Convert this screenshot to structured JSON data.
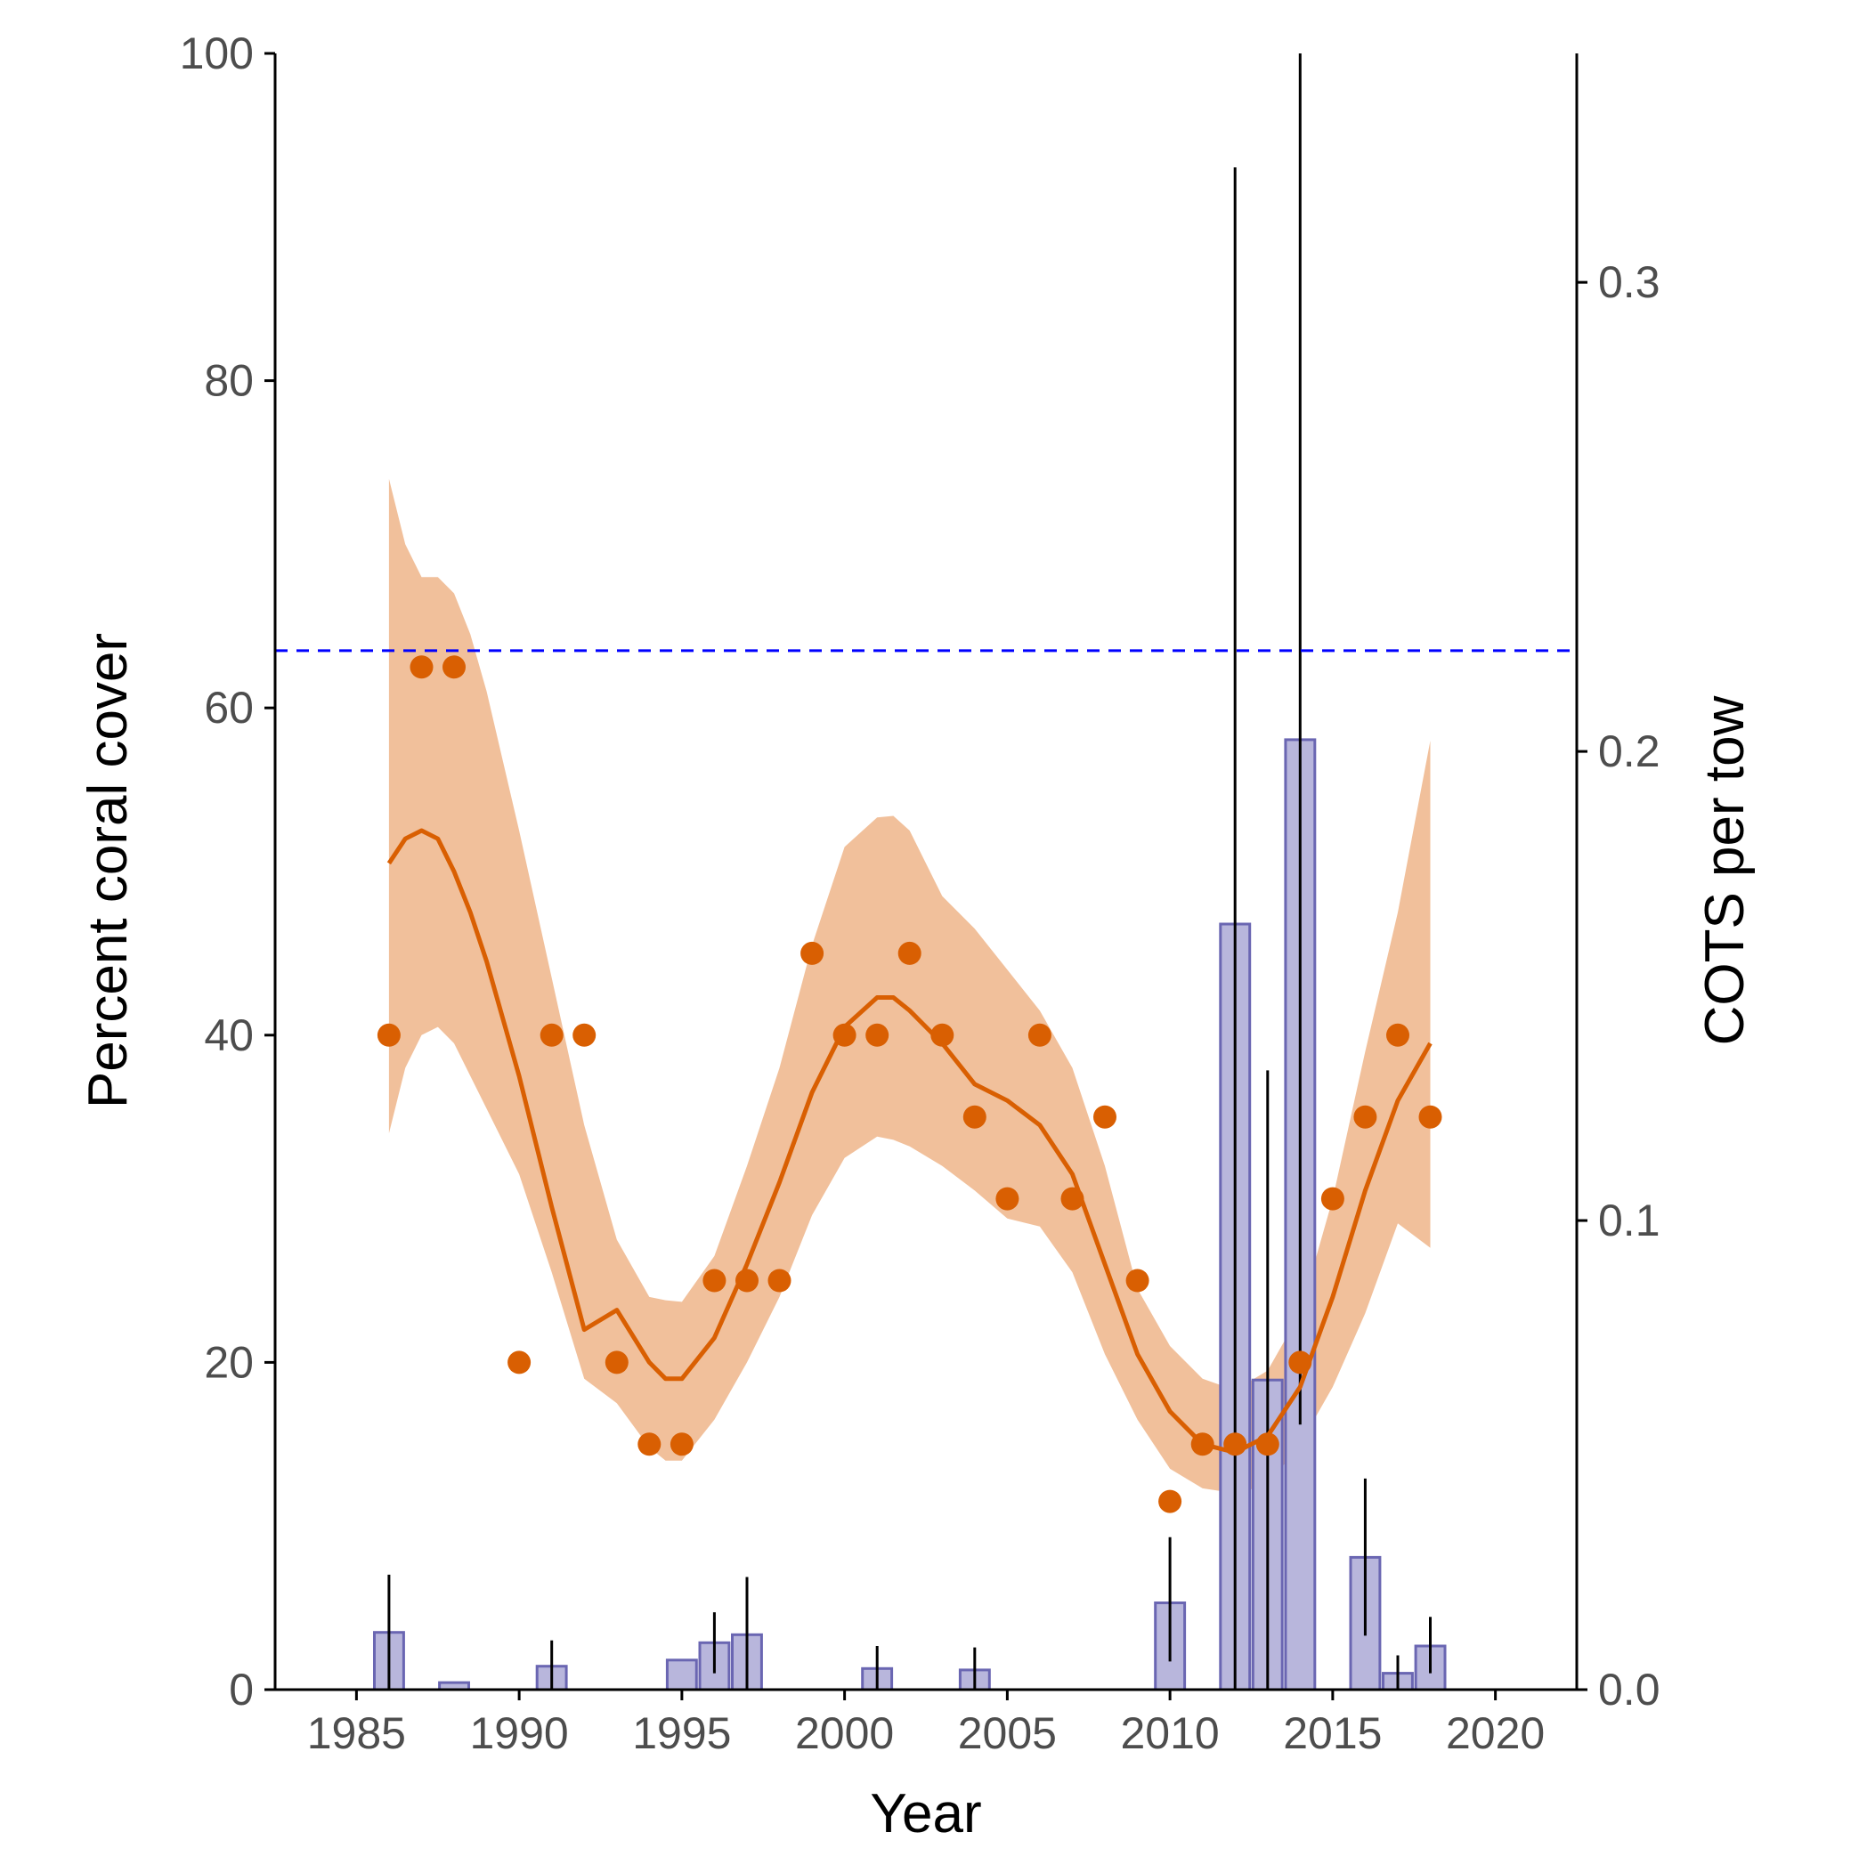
{
  "chart_data": {
    "type": "bar+scatter+line",
    "title": "",
    "xlabel": "Year",
    "ylabel_left": "Percent coral cover",
    "ylabel_right": "COTS per tow",
    "xlim": [
      1982.5,
      2022.5
    ],
    "ylim_left": [
      0,
      100
    ],
    "ylim_right": [
      0,
      0.3488
    ],
    "x_ticks": [
      1985,
      1990,
      1995,
      2000,
      2005,
      2010,
      2015,
      2020
    ],
    "y_ticks_left": [
      0,
      20,
      40,
      60,
      80,
      100
    ],
    "y_ticks_right": [
      0.0,
      0.1,
      0.2,
      0.3
    ],
    "y_tick_labels_right": [
      "0.0",
      "0.1",
      "0.2",
      "0.3"
    ],
    "grid": false,
    "legend": "none",
    "reference_line": {
      "y": 63.5,
      "style": "dashed",
      "color": "#0000ff"
    },
    "colors": {
      "points": "#d95f02",
      "trend_line": "#d95f02",
      "ribbon": "#f1c09b",
      "bar_fill": "#b8b6dc",
      "bar_stroke": "#6a66b2",
      "error_bar": "#000000",
      "axis": "#000000"
    },
    "coral_cover_points": {
      "x": [
        1986,
        1987,
        1988,
        1990,
        1991,
        1992,
        1993,
        1994,
        1995,
        1996,
        1997,
        1998,
        1999,
        2000,
        2001,
        2002,
        2003,
        2004,
        2005,
        2006,
        2007,
        2008,
        2009,
        2010,
        2011,
        2012,
        2013,
        2014,
        2015,
        2016,
        2017,
        2018
      ],
      "y": [
        40,
        62.5,
        62.5,
        20,
        40,
        40,
        20,
        15,
        15,
        25,
        25,
        25,
        45,
        40,
        40,
        45,
        40,
        35,
        30,
        40,
        30,
        35,
        25,
        11.5,
        15,
        15,
        15,
        20,
        30,
        35,
        40,
        35
      ]
    },
    "trend": {
      "x": [
        1986,
        1986.5,
        1987,
        1987.5,
        1988,
        1988.5,
        1989,
        1990,
        1991,
        1992,
        1993,
        1994,
        1994.5,
        1995,
        1996,
        1997,
        1998,
        1999,
        2000,
        2001,
        2001.5,
        2002,
        2003,
        2004,
        2005,
        2006,
        2007,
        2008,
        2009,
        2010,
        2011,
        2012,
        2013,
        2014,
        2015,
        2016,
        2017,
        2018
      ],
      "fit": [
        50.5,
        52.0,
        52.5,
        52.0,
        50.0,
        47.5,
        44.5,
        37.5,
        29.5,
        22.0,
        23.2,
        20.0,
        19.0,
        19.0,
        21.5,
        26.0,
        31.0,
        36.5,
        40.5,
        42.3,
        42.3,
        41.5,
        39.5,
        37.0,
        36.0,
        34.5,
        31.5,
        26.0,
        20.5,
        17.0,
        15.0,
        14.5,
        15.5,
        18.5,
        24.0,
        30.5,
        36.0,
        39.5
      ],
      "lower": [
        34.0,
        38.0,
        40.0,
        40.5,
        39.5,
        37.5,
        35.5,
        31.5,
        25.5,
        19.0,
        17.5,
        14.8,
        14.0,
        14.0,
        16.5,
        20.0,
        24.0,
        29.0,
        32.5,
        33.8,
        33.6,
        33.2,
        32.0,
        30.5,
        28.8,
        28.3,
        25.5,
        20.5,
        16.5,
        13.5,
        12.3,
        12.0,
        12.5,
        15.0,
        18.5,
        23.0,
        28.5,
        27.0
      ],
      "upper": [
        74.0,
        70.0,
        68.0,
        68.0,
        67.0,
        64.5,
        61.0,
        52.5,
        43.5,
        34.5,
        27.5,
        24.0,
        23.8,
        23.7,
        26.5,
        32.0,
        38.0,
        45.5,
        51.5,
        53.3,
        53.4,
        52.5,
        48.5,
        46.5,
        44.0,
        41.5,
        38.0,
        32.0,
        24.5,
        21.0,
        19.0,
        18.3,
        19.5,
        23.0,
        30.0,
        39.0,
        47.5,
        58.0
      ]
    },
    "cots_bars": {
      "x": [
        1986,
        1988,
        1991,
        1995,
        1996,
        1997,
        2001,
        2004,
        2010,
        2012,
        2013,
        2014,
        2016,
        2017,
        2018
      ],
      "values": [
        0.0122,
        0.0015,
        0.005,
        0.0063,
        0.01,
        0.0117,
        0.0045,
        0.0042,
        0.0185,
        0.1632,
        0.066,
        0.2025,
        0.0282,
        0.0035,
        0.0093
      ],
      "error_low": [
        0.0,
        0.0015,
        0.0,
        0.0063,
        0.0035,
        0.0,
        0.0,
        0.0,
        0.006,
        0.0,
        0.0,
        0.0565,
        0.0115,
        0.0,
        0.0035
      ],
      "error_high": [
        0.0245,
        0.0015,
        0.0105,
        0.0063,
        0.0165,
        0.024,
        0.0093,
        0.009,
        0.0325,
        0.3245,
        0.132,
        0.3488,
        0.045,
        0.0073,
        0.0155
      ]
    }
  }
}
